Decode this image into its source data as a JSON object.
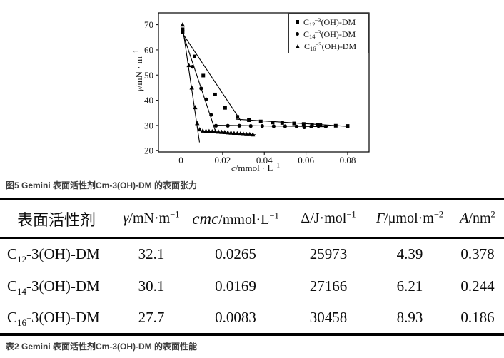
{
  "figure_caption": "图5 Gemini 表面活性剂Cm-3(OH)-DM 的表面张力",
  "table_caption": "表2 Gemini 表面活性剂Cm-3(OH)-DM 的表面性能",
  "table": {
    "headers": {
      "surfactant": "表面活性剂",
      "gamma": {
        "sym": "γ",
        "unit": "/mN·m",
        "exp": "−1"
      },
      "cmc": {
        "sym": "cmc",
        "unit": "/mmol·L",
        "exp": "−1"
      },
      "delta": {
        "sym": "Δ",
        "unit": "/J·mol",
        "exp": "−1"
      },
      "gamma_max": {
        "sym": "Γ",
        "unit": "/μmol·m",
        "exp": "−2"
      },
      "area": {
        "sym": "A",
        "unit": "/nm",
        "exp": "2"
      }
    },
    "rows": [
      {
        "name": {
          "el": "C",
          "sub": "12",
          "rest": "-3(OH)-DM"
        },
        "gamma": "32.1",
        "cmc": "0.0265",
        "delta": "25973",
        "gamma_max": "4.39",
        "area": "0.378"
      },
      {
        "name": {
          "el": "C",
          "sub": "14",
          "rest": "-3(OH)-DM"
        },
        "gamma": "30.1",
        "cmc": "0.0169",
        "delta": "27166",
        "gamma_max": "6.21",
        "area": "0.244"
      },
      {
        "name": {
          "el": "C",
          "sub": "16",
          "rest": "-3(OH)-DM"
        },
        "gamma": "27.7",
        "cmc": "0.0083",
        "delta": "30458",
        "gamma_max": "8.93",
        "area": "0.186"
      }
    ]
  },
  "chart_data": {
    "type": "scatter",
    "title": "",
    "xlabel": "c/mmol·L−1",
    "ylabel": "γ/mN·m−1",
    "xlabel_parts": {
      "sym": "c",
      "unit": "/mmol · L",
      "exp": "−1"
    },
    "ylabel_parts": {
      "sym": "γ",
      "unit": "/mN · m",
      "exp": "−1"
    },
    "xlim": [
      -0.0108,
      0.0903
    ],
    "ylim": [
      19.5,
      74.7
    ],
    "xticks": [
      0,
      0.02,
      0.04,
      0.06,
      0.08
    ],
    "xtick_labels": [
      "0",
      "0.02",
      "0.04",
      "0.06",
      "0.08"
    ],
    "yticks": [
      20,
      30,
      40,
      50,
      60,
      70
    ],
    "ytick_labels": [
      "20",
      "30",
      "40",
      "50",
      "60",
      "70"
    ],
    "grid": false,
    "legend_position": "top-right",
    "series": [
      {
        "name": "C12-3(OH)-DM",
        "label_parts": {
          "el": "C",
          "sub": "12",
          "sup": "−3",
          "rest": "(OH)-DM"
        },
        "marker": "square",
        "points": [
          [
            0.0008,
            68.2
          ],
          [
            0.0008,
            67.0
          ],
          [
            0.0065,
            57.4
          ],
          [
            0.0107,
            49.8
          ],
          [
            0.0164,
            42.3
          ],
          [
            0.0212,
            37.0
          ],
          [
            0.0271,
            33.4
          ],
          [
            0.0326,
            32.1
          ],
          [
            0.0383,
            31.6
          ],
          [
            0.044,
            31.2
          ],
          [
            0.0486,
            31.0
          ],
          [
            0.0543,
            30.8
          ],
          [
            0.0589,
            30.6
          ],
          [
            0.0629,
            30.4
          ],
          [
            0.0655,
            30.3
          ],
          [
            0.0669,
            30.1
          ],
          [
            0.0743,
            29.9
          ],
          [
            0.08,
            29.8
          ]
        ],
        "lines": [
          [
            [
              0.001,
              66.3
            ],
            [
              0.0288,
              31.8
            ]
          ],
          [
            [
              0.0262,
              32.5
            ],
            [
              0.0808,
              29.6
            ]
          ]
        ]
      },
      {
        "name": "C14-3(OH)-DM",
        "label_parts": {
          "el": "C",
          "sub": "14",
          "sup": "−3",
          "rest": "(OH)-DM"
        },
        "marker": "circle",
        "points": [
          [
            0.0008,
            67.6
          ],
          [
            0.0055,
            53.3
          ],
          [
            0.0097,
            44.7
          ],
          [
            0.0121,
            40.4
          ],
          [
            0.0145,
            34.2
          ],
          [
            0.0168,
            29.9
          ],
          [
            0.0225,
            29.9
          ],
          [
            0.028,
            29.9
          ],
          [
            0.0335,
            29.8
          ],
          [
            0.039,
            29.8
          ],
          [
            0.0445,
            29.7
          ],
          [
            0.05,
            29.7
          ],
          [
            0.0555,
            29.6
          ],
          [
            0.0592,
            29.3
          ],
          [
            0.0625,
            29.6
          ],
          [
            0.066,
            29.8
          ],
          [
            0.0695,
            29.6
          ]
        ],
        "lines": [
          [
            [
              0.001,
              66.3
            ],
            [
              0.0165,
              27.9
            ]
          ],
          [
            [
              0.0158,
              30.1
            ],
            [
              0.0705,
              29.5
            ]
          ]
        ]
      },
      {
        "name": "C16-3(OH)-DM",
        "label_parts": {
          "el": "C",
          "sub": "16",
          "sup": "−3",
          "rest": "(OH)-DM"
        },
        "marker": "triangle",
        "points": [
          [
            0.0008,
            70.0
          ],
          [
            0.0038,
            53.9
          ],
          [
            0.0052,
            45.0
          ],
          [
            0.0068,
            37.2
          ],
          [
            0.0078,
            30.9
          ],
          [
            0.009,
            28.4
          ],
          [
            0.0105,
            27.9
          ],
          [
            0.012,
            27.8
          ],
          [
            0.0135,
            27.7
          ],
          [
            0.015,
            27.6
          ],
          [
            0.0165,
            27.6
          ],
          [
            0.018,
            27.5
          ],
          [
            0.0195,
            27.4
          ],
          [
            0.021,
            27.3
          ],
          [
            0.0225,
            27.2
          ],
          [
            0.024,
            27.1
          ],
          [
            0.0255,
            26.9
          ],
          [
            0.027,
            26.8
          ],
          [
            0.0285,
            26.7
          ],
          [
            0.03,
            26.6
          ],
          [
            0.0315,
            26.5
          ],
          [
            0.033,
            26.5
          ],
          [
            0.0345,
            26.4
          ]
        ],
        "lines": [
          [
            [
              0.0013,
              66.3
            ],
            [
              0.0089,
              23.3
            ]
          ],
          [
            [
              0.0082,
              28.0
            ],
            [
              0.0358,
              26.3
            ]
          ]
        ]
      }
    ]
  }
}
